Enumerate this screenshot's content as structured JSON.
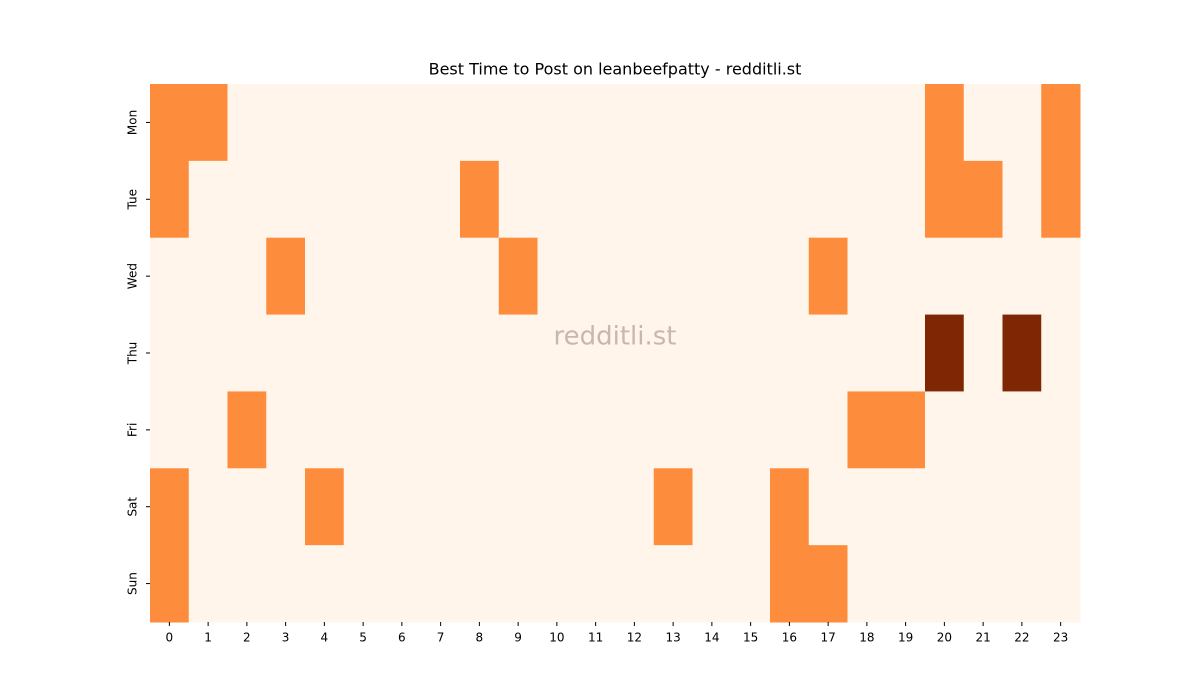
{
  "chart_data": {
    "type": "heatmap",
    "title": "Best Time to Post on leanbeefpatty - redditli.st",
    "watermark": "redditli.st",
    "x": [
      0,
      1,
      2,
      3,
      4,
      5,
      6,
      7,
      8,
      9,
      10,
      11,
      12,
      13,
      14,
      15,
      16,
      17,
      18,
      19,
      20,
      21,
      22,
      23
    ],
    "y": [
      "Mon",
      "Tue",
      "Wed",
      "Thu",
      "Fri",
      "Sat",
      "Sun"
    ],
    "values": [
      [
        1,
        1,
        0,
        0,
        0,
        0,
        0,
        0,
        0,
        0,
        0,
        0,
        0,
        0,
        0,
        0,
        0,
        0,
        0,
        0,
        1,
        0,
        0,
        1
      ],
      [
        1,
        0,
        0,
        0,
        0,
        0,
        0,
        0,
        1,
        0,
        0,
        0,
        0,
        0,
        0,
        0,
        0,
        0,
        0,
        0,
        1,
        1,
        0,
        1
      ],
      [
        0,
        0,
        0,
        1,
        0,
        0,
        0,
        0,
        0,
        1,
        0,
        0,
        0,
        0,
        0,
        0,
        0,
        1,
        0,
        0,
        0,
        0,
        0,
        0
      ],
      [
        0,
        0,
        0,
        0,
        0,
        0,
        0,
        0,
        0,
        0,
        0,
        0,
        0,
        0,
        0,
        0,
        0,
        0,
        0,
        0,
        2,
        0,
        2,
        0
      ],
      [
        0,
        0,
        1,
        0,
        0,
        0,
        0,
        0,
        0,
        0,
        0,
        0,
        0,
        0,
        0,
        0,
        0,
        0,
        1,
        1,
        0,
        0,
        0,
        0
      ],
      [
        1,
        0,
        0,
        0,
        1,
        0,
        0,
        0,
        0,
        0,
        0,
        0,
        0,
        1,
        0,
        0,
        1,
        0,
        0,
        0,
        0,
        0,
        0,
        0
      ],
      [
        1,
        0,
        0,
        0,
        0,
        0,
        0,
        0,
        0,
        0,
        0,
        0,
        0,
        0,
        0,
        0,
        1,
        1,
        0,
        0,
        0,
        0,
        0,
        0
      ]
    ],
    "zlim": [
      0,
      2
    ],
    "colormap": [
      "#fff5eb",
      "#fd8d3c",
      "#7f2704"
    ]
  }
}
